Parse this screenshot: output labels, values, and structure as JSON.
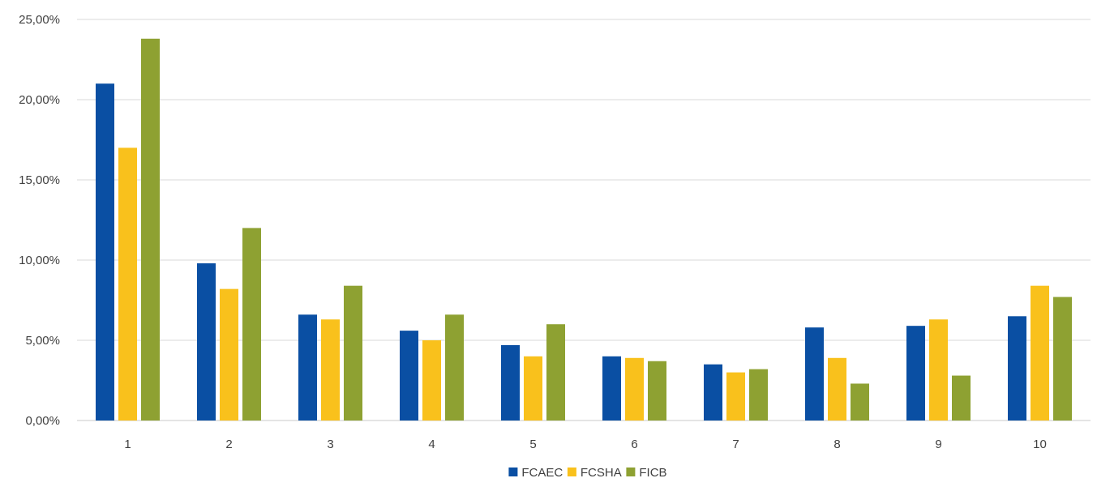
{
  "chart_data": {
    "type": "bar",
    "title": "",
    "xlabel": "",
    "ylabel": "",
    "categories": [
      "1",
      "2",
      "3",
      "4",
      "5",
      "6",
      "7",
      "8",
      "9",
      "10"
    ],
    "ylim": [
      0,
      25
    ],
    "yticks": [
      0,
      5,
      10,
      15,
      20,
      25
    ],
    "ytick_labels": [
      "0,00%",
      "5,00%",
      "10,00%",
      "15,00%",
      "20,00%",
      "25,00%"
    ],
    "grid": true,
    "legend_position": "bottom-center",
    "series": [
      {
        "name": "FCAEC",
        "color": "#0a4fa3",
        "values": [
          21.0,
          9.8,
          6.6,
          5.6,
          4.7,
          4.0,
          3.5,
          5.8,
          5.9,
          6.5
        ]
      },
      {
        "name": "FCSHA",
        "color": "#f9c11c",
        "values": [
          17.0,
          8.2,
          6.3,
          5.0,
          4.0,
          3.9,
          3.0,
          3.9,
          6.3,
          8.4
        ]
      },
      {
        "name": "FICB",
        "color": "#8ea132",
        "values": [
          23.8,
          12.0,
          8.4,
          6.6,
          6.0,
          3.7,
          3.2,
          2.3,
          2.8,
          7.7
        ]
      }
    ]
  }
}
